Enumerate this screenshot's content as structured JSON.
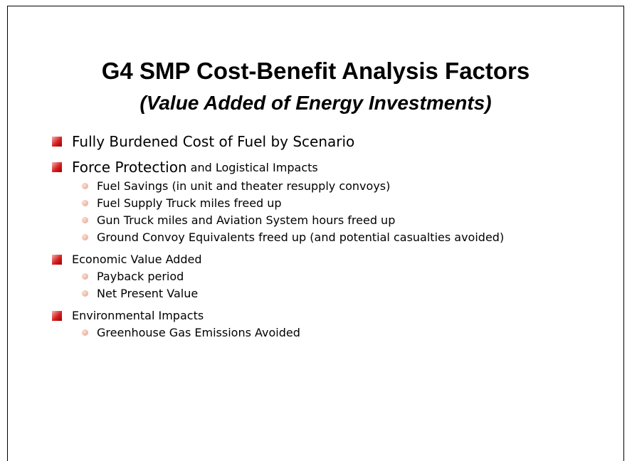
{
  "title": "G4 SMP Cost-Benefit Analysis Factors",
  "subtitle": "(Value Added of Energy Investments)",
  "bullets": [
    {
      "parts": [
        "Fully Burdened Cost of Fuel by Scenario"
      ]
    },
    {
      "parts": [
        "Force Protection",
        "and Logistical Impacts"
      ],
      "subitems": [
        "Fuel Savings (in unit and theater resupply convoys)",
        "Fuel Supply Truck miles freed up",
        "Gun Truck miles and Aviation System hours freed up",
        "Ground Convoy Equivalents freed up (and potential casualties avoided)"
      ]
    },
    {
      "parts": [
        "Economic Value Added"
      ],
      "subitems": [
        "Payback period",
        "Net Present Value"
      ]
    },
    {
      "parts": [
        "Environmental Impacts"
      ],
      "subitems": [
        "Greenhouse Gas Emissions Avoided"
      ]
    }
  ]
}
